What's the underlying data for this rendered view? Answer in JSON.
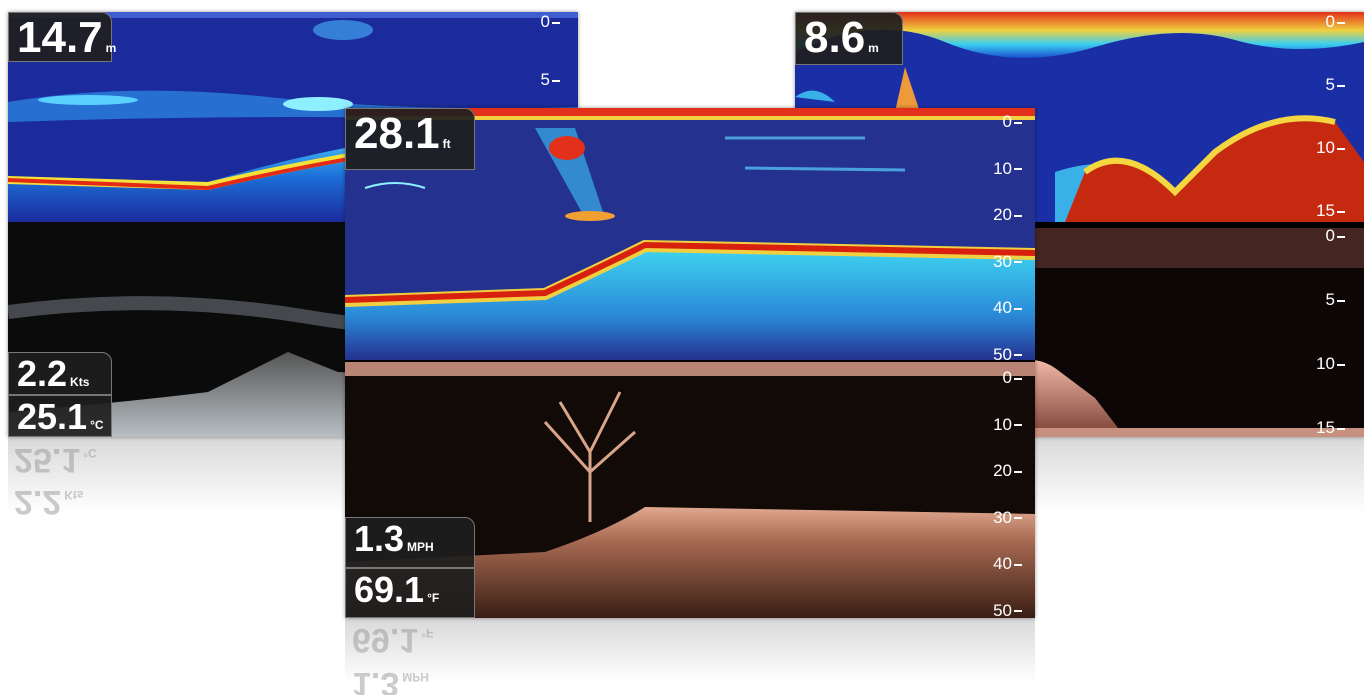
{
  "left": {
    "depth": {
      "value": "14.7",
      "unit": "m"
    },
    "speed": {
      "value": "2.2",
      "unit": "Kts"
    },
    "temperature": {
      "value": "25.1",
      "unit": "°C"
    },
    "scale_top": [
      0,
      5
    ]
  },
  "right": {
    "depth": {
      "value": "8.6",
      "unit": "m"
    },
    "scale_top": [
      0,
      5,
      10,
      15
    ],
    "scale_bottom": [
      0,
      5,
      10,
      15
    ]
  },
  "center": {
    "depth": {
      "value": "28.1",
      "unit": "ft"
    },
    "speed": {
      "value": "1.3",
      "unit": "MPH"
    },
    "temperature": {
      "value": "69.1",
      "unit": "°F"
    },
    "scale_top": [
      0,
      10,
      20,
      30,
      40,
      50
    ],
    "scale_bottom": [
      0,
      10,
      20,
      30,
      40,
      50
    ]
  }
}
